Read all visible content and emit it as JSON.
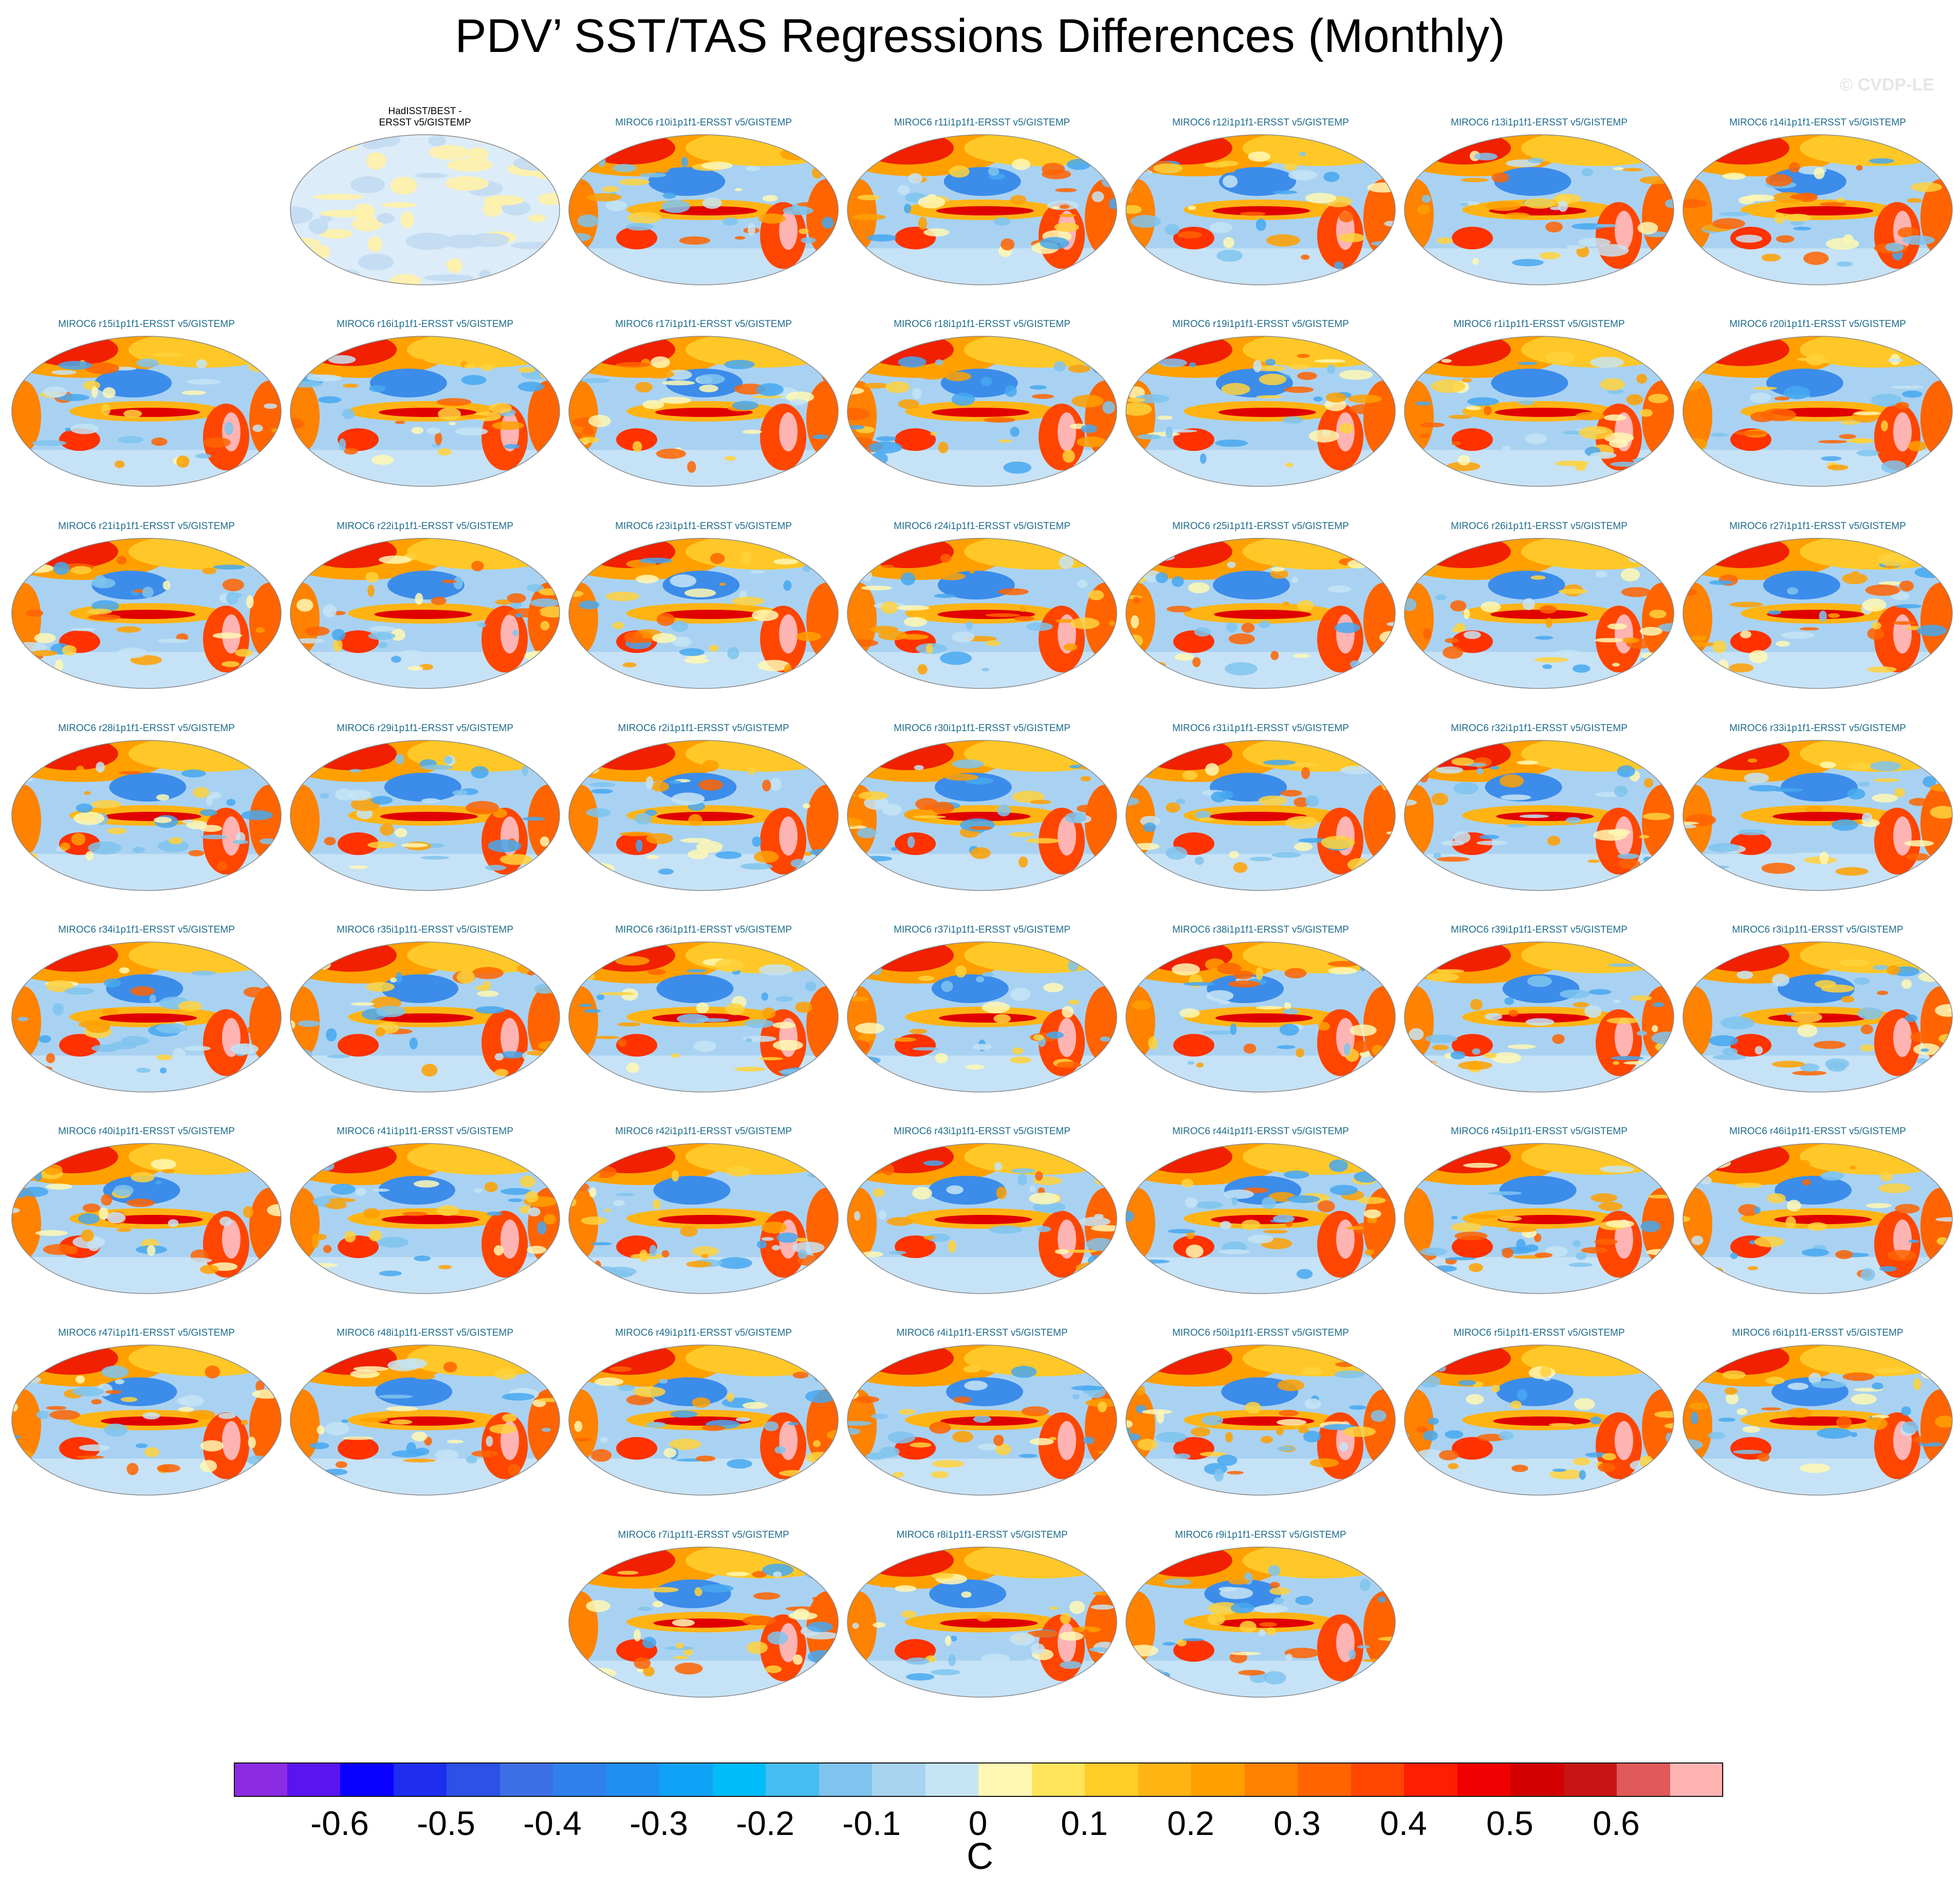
{
  "figure": {
    "title": "PDV’ SST/TAS Regressions Differences (Monthly)",
    "credit": "© CVDP-LE",
    "units": "C"
  },
  "panels": [
    {
      "label": "HadISST/BEST -\nERSST v5/GISTEMP",
      "kind": "obs"
    },
    {
      "label": "MIROC6 r10i1p1f1-ERSST v5/GISTEMP"
    },
    {
      "label": "MIROC6 r11i1p1f1-ERSST v5/GISTEMP"
    },
    {
      "label": "MIROC6 r12i1p1f1-ERSST v5/GISTEMP"
    },
    {
      "label": "MIROC6 r13i1p1f1-ERSST v5/GISTEMP"
    },
    {
      "label": "MIROC6 r14i1p1f1-ERSST v5/GISTEMP"
    },
    {
      "label": "MIROC6 r15i1p1f1-ERSST v5/GISTEMP"
    },
    {
      "label": "MIROC6 r16i1p1f1-ERSST v5/GISTEMP"
    },
    {
      "label": "MIROC6 r17i1p1f1-ERSST v5/GISTEMP"
    },
    {
      "label": "MIROC6 r18i1p1f1-ERSST v5/GISTEMP"
    },
    {
      "label": "MIROC6 r19i1p1f1-ERSST v5/GISTEMP"
    },
    {
      "label": "MIROC6 r1i1p1f1-ERSST v5/GISTEMP"
    },
    {
      "label": "MIROC6 r20i1p1f1-ERSST v5/GISTEMP"
    },
    {
      "label": "MIROC6 r21i1p1f1-ERSST v5/GISTEMP"
    },
    {
      "label": "MIROC6 r22i1p1f1-ERSST v5/GISTEMP"
    },
    {
      "label": "MIROC6 r23i1p1f1-ERSST v5/GISTEMP"
    },
    {
      "label": "MIROC6 r24i1p1f1-ERSST v5/GISTEMP"
    },
    {
      "label": "MIROC6 r25i1p1f1-ERSST v5/GISTEMP"
    },
    {
      "label": "MIROC6 r26i1p1f1-ERSST v5/GISTEMP"
    },
    {
      "label": "MIROC6 r27i1p1f1-ERSST v5/GISTEMP"
    },
    {
      "label": "MIROC6 r28i1p1f1-ERSST v5/GISTEMP"
    },
    {
      "label": "MIROC6 r29i1p1f1-ERSST v5/GISTEMP"
    },
    {
      "label": "MIROC6 r2i1p1f1-ERSST v5/GISTEMP"
    },
    {
      "label": "MIROC6 r30i1p1f1-ERSST v5/GISTEMP"
    },
    {
      "label": "MIROC6 r31i1p1f1-ERSST v5/GISTEMP"
    },
    {
      "label": "MIROC6 r32i1p1f1-ERSST v5/GISTEMP"
    },
    {
      "label": "MIROC6 r33i1p1f1-ERSST v5/GISTEMP"
    },
    {
      "label": "MIROC6 r34i1p1f1-ERSST v5/GISTEMP"
    },
    {
      "label": "MIROC6 r35i1p1f1-ERSST v5/GISTEMP"
    },
    {
      "label": "MIROC6 r36i1p1f1-ERSST v5/GISTEMP"
    },
    {
      "label": "MIROC6 r37i1p1f1-ERSST v5/GISTEMP"
    },
    {
      "label": "MIROC6 r38i1p1f1-ERSST v5/GISTEMP"
    },
    {
      "label": "MIROC6 r39i1p1f1-ERSST v5/GISTEMP"
    },
    {
      "label": "MIROC6 r3i1p1f1-ERSST v5/GISTEMP"
    },
    {
      "label": "MIROC6 r40i1p1f1-ERSST v5/GISTEMP"
    },
    {
      "label": "MIROC6 r41i1p1f1-ERSST v5/GISTEMP"
    },
    {
      "label": "MIROC6 r42i1p1f1-ERSST v5/GISTEMP"
    },
    {
      "label": "MIROC6 r43i1p1f1-ERSST v5/GISTEMP"
    },
    {
      "label": "MIROC6 r44i1p1f1-ERSST v5/GISTEMP"
    },
    {
      "label": "MIROC6 r45i1p1f1-ERSST v5/GISTEMP"
    },
    {
      "label": "MIROC6 r46i1p1f1-ERSST v5/GISTEMP"
    },
    {
      "label": "MIROC6 r47i1p1f1-ERSST v5/GISTEMP"
    },
    {
      "label": "MIROC6 r48i1p1f1-ERSST v5/GISTEMP"
    },
    {
      "label": "MIROC6 r49i1p1f1-ERSST v5/GISTEMP"
    },
    {
      "label": "MIROC6 r4i1p1f1-ERSST v5/GISTEMP"
    },
    {
      "label": "MIROC6 r50i1p1f1-ERSST v5/GISTEMP"
    },
    {
      "label": "MIROC6 r5i1p1f1-ERSST v5/GISTEMP"
    },
    {
      "label": "MIROC6 r6i1p1f1-ERSST v5/GISTEMP"
    },
    {
      "label": "MIROC6 r7i1p1f1-ERSST v5/GISTEMP"
    },
    {
      "label": "MIROC6 r8i1p1f1-ERSST v5/GISTEMP"
    },
    {
      "label": "MIROC6 r9i1p1f1-ERSST v5/GISTEMP"
    }
  ],
  "colorbar": {
    "colors": [
      "#8b2be2",
      "#5a14f0",
      "#0a00ff",
      "#1e2df0",
      "#2d50e6",
      "#3c6ee6",
      "#2f80ec",
      "#1f8ff2",
      "#10a2f6",
      "#00bcf8",
      "#46bdf0",
      "#7fc4ee",
      "#a8d4f0",
      "#c6e4f4",
      "#fff8b4",
      "#ffe45a",
      "#ffcc28",
      "#ffb414",
      "#ffa000",
      "#ff8200",
      "#ff6400",
      "#ff4600",
      "#ff1e00",
      "#f00000",
      "#d20000",
      "#c81414",
      "#e05a5a",
      "#ffb4b4"
    ],
    "tick_labels": [
      "-0.6",
      "-0.5",
      "-0.4",
      "-0.3",
      "-0.2",
      "-0.1",
      "0",
      "0.1",
      "0.2",
      "0.3",
      "0.4",
      "0.5",
      "0.6"
    ]
  }
}
